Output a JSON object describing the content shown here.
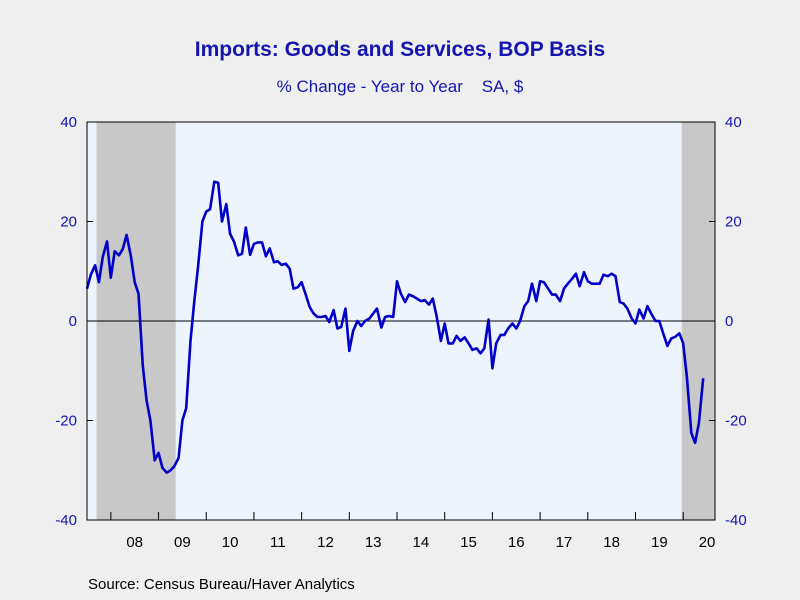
{
  "chart_data": {
    "type": "line",
    "title": "Imports: Goods and Services, BOP Basis",
    "subtitle": "% Change - Year to Year    SA, $",
    "source": "Source:  Census Bureau/Haver Analytics",
    "ylim": [
      -40,
      40
    ],
    "y_ticks": [
      {
        "value": 40,
        "label": "40"
      },
      {
        "value": 20,
        "label": "20"
      },
      {
        "value": 0,
        "label": "0"
      },
      {
        "value": -20,
        "label": "-20"
      },
      {
        "value": -40,
        "label": "-40"
      }
    ],
    "x_start_year": 2007.5,
    "x_end_year": 2020.667,
    "x_tick_labels": [
      {
        "year": 2008,
        "label": "08"
      },
      {
        "year": 2009,
        "label": "09"
      },
      {
        "year": 2010,
        "label": "10"
      },
      {
        "year": 2011,
        "label": "11"
      },
      {
        "year": 2012,
        "label": "12"
      },
      {
        "year": 2013,
        "label": "13"
      },
      {
        "year": 2014,
        "label": "14"
      },
      {
        "year": 2015,
        "label": "15"
      },
      {
        "year": 2016,
        "label": "16"
      },
      {
        "year": 2017,
        "label": "17"
      },
      {
        "year": 2018,
        "label": "18"
      },
      {
        "year": 2019,
        "label": "19"
      },
      {
        "year": 2020,
        "label": "20"
      }
    ],
    "recessions": [
      {
        "start": 2007.7,
        "end": 2009.36
      },
      {
        "start": 2019.97,
        "end": 2020.667
      }
    ],
    "grid": false,
    "colors": {
      "line": "#0000c8",
      "plot_bg": "#eef4fd",
      "recession": "#c8c8c8",
      "text": "#1515b0"
    },
    "series": [
      {
        "values": [
          [
            2007.5,
            6.5
          ],
          [
            2007.58,
            9.3
          ],
          [
            2007.67,
            11.2
          ],
          [
            2007.75,
            7.8
          ],
          [
            2007.83,
            12.8
          ],
          [
            2007.92,
            16
          ],
          [
            2008.0,
            8.7
          ],
          [
            2008.08,
            14
          ],
          [
            2008.17,
            13.2
          ],
          [
            2008.25,
            14.5
          ],
          [
            2008.33,
            17.3
          ],
          [
            2008.42,
            13
          ],
          [
            2008.5,
            7.8
          ],
          [
            2008.58,
            5.5
          ],
          [
            2008.67,
            -9
          ],
          [
            2008.75,
            -16
          ],
          [
            2008.83,
            -20
          ],
          [
            2008.92,
            -28
          ],
          [
            2009.0,
            -26.5
          ],
          [
            2009.08,
            -29.5
          ],
          [
            2009.17,
            -30.5
          ],
          [
            2009.25,
            -30
          ],
          [
            2009.33,
            -29.2
          ],
          [
            2009.42,
            -27.5
          ],
          [
            2009.5,
            -20
          ],
          [
            2009.58,
            -17.5
          ],
          [
            2009.67,
            -4
          ],
          [
            2009.75,
            4
          ],
          [
            2009.83,
            11
          ],
          [
            2009.92,
            20
          ],
          [
            2010.0,
            22
          ],
          [
            2010.08,
            22.5
          ],
          [
            2010.17,
            28
          ],
          [
            2010.25,
            27.8
          ],
          [
            2010.33,
            20
          ],
          [
            2010.42,
            23.5
          ],
          [
            2010.5,
            17.5
          ],
          [
            2010.58,
            16
          ],
          [
            2010.67,
            13.2
          ],
          [
            2010.75,
            13.5
          ],
          [
            2010.83,
            18.8
          ],
          [
            2010.92,
            13.3
          ],
          [
            2011.0,
            15.5
          ],
          [
            2011.08,
            15.8
          ],
          [
            2011.17,
            15.8
          ],
          [
            2011.25,
            13
          ],
          [
            2011.33,
            14.6
          ],
          [
            2011.42,
            11.8
          ],
          [
            2011.5,
            12
          ],
          [
            2011.58,
            11.3
          ],
          [
            2011.67,
            11.5
          ],
          [
            2011.75,
            10.5
          ],
          [
            2011.83,
            6.5
          ],
          [
            2011.92,
            6.8
          ],
          [
            2012.0,
            7.8
          ],
          [
            2012.08,
            5.5
          ],
          [
            2012.17,
            2.8
          ],
          [
            2012.25,
            1.5
          ],
          [
            2012.33,
            0.8
          ],
          [
            2012.42,
            0.8
          ],
          [
            2012.5,
            1
          ],
          [
            2012.58,
            -0.2
          ],
          [
            2012.67,
            2.2
          ],
          [
            2012.75,
            -1.5
          ],
          [
            2012.83,
            -1.2
          ],
          [
            2012.92,
            2.5
          ],
          [
            2013.0,
            -6
          ],
          [
            2013.08,
            -2
          ],
          [
            2013.17,
            0
          ],
          [
            2013.25,
            -1
          ],
          [
            2013.33,
            0
          ],
          [
            2013.42,
            0.5
          ],
          [
            2013.5,
            1.5
          ],
          [
            2013.58,
            2.5
          ],
          [
            2013.67,
            -1.3
          ],
          [
            2013.75,
            0.8
          ],
          [
            2013.83,
            1
          ],
          [
            2013.92,
            0.8
          ],
          [
            2014.0,
            8
          ],
          [
            2014.08,
            5.5
          ],
          [
            2014.17,
            3.8
          ],
          [
            2014.25,
            5.3
          ],
          [
            2014.33,
            5
          ],
          [
            2014.42,
            4.5
          ],
          [
            2014.5,
            4
          ],
          [
            2014.58,
            4.2
          ],
          [
            2014.67,
            3.3
          ],
          [
            2014.75,
            4.5
          ],
          [
            2014.83,
            1
          ],
          [
            2014.92,
            -4
          ],
          [
            2015.0,
            -0.5
          ],
          [
            2015.08,
            -4.5
          ],
          [
            2015.17,
            -4.5
          ],
          [
            2015.25,
            -3
          ],
          [
            2015.33,
            -4
          ],
          [
            2015.42,
            -3.3
          ],
          [
            2015.5,
            -4.5
          ],
          [
            2015.58,
            -5.8
          ],
          [
            2015.67,
            -5.5
          ],
          [
            2015.75,
            -6.5
          ],
          [
            2015.83,
            -5.5
          ],
          [
            2015.92,
            0.3
          ],
          [
            2016.0,
            -9.5
          ],
          [
            2016.08,
            -4.5
          ],
          [
            2016.17,
            -2.8
          ],
          [
            2016.25,
            -2.8
          ],
          [
            2016.33,
            -1.5
          ],
          [
            2016.42,
            -0.5
          ],
          [
            2016.5,
            -1.5
          ],
          [
            2016.58,
            0
          ],
          [
            2016.67,
            3
          ],
          [
            2016.75,
            4
          ],
          [
            2016.83,
            7.5
          ],
          [
            2016.92,
            4
          ],
          [
            2017.0,
            8
          ],
          [
            2017.08,
            7.8
          ],
          [
            2017.17,
            6.5
          ],
          [
            2017.25,
            5.3
          ],
          [
            2017.33,
            5.3
          ],
          [
            2017.42,
            4
          ],
          [
            2017.5,
            6.5
          ],
          [
            2017.58,
            7.5
          ],
          [
            2017.67,
            8.5
          ],
          [
            2017.75,
            9.5
          ],
          [
            2017.83,
            7
          ],
          [
            2017.92,
            9.8
          ],
          [
            2018.0,
            8
          ],
          [
            2018.08,
            7.5
          ],
          [
            2018.17,
            7.5
          ],
          [
            2018.25,
            7.5
          ],
          [
            2018.33,
            9.3
          ],
          [
            2018.42,
            9
          ],
          [
            2018.5,
            9.5
          ],
          [
            2018.58,
            9
          ],
          [
            2018.67,
            3.8
          ],
          [
            2018.75,
            3.5
          ],
          [
            2018.83,
            2.5
          ],
          [
            2018.92,
            0.5
          ],
          [
            2019.0,
            -0.5
          ],
          [
            2019.08,
            2.3
          ],
          [
            2019.17,
            0.5
          ],
          [
            2019.25,
            3
          ],
          [
            2019.33,
            1.5
          ],
          [
            2019.42,
            0
          ],
          [
            2019.5,
            0
          ],
          [
            2019.58,
            -2.5
          ],
          [
            2019.67,
            -5
          ],
          [
            2019.75,
            -3.5
          ],
          [
            2019.83,
            -3.2
          ],
          [
            2019.92,
            -2.5
          ],
          [
            2020.0,
            -4.5
          ],
          [
            2020.08,
            -11.5
          ],
          [
            2020.17,
            -22.5
          ],
          [
            2020.25,
            -24.5
          ],
          [
            2020.33,
            -20.5
          ],
          [
            2020.42,
            -11.5
          ]
        ]
      }
    ]
  }
}
